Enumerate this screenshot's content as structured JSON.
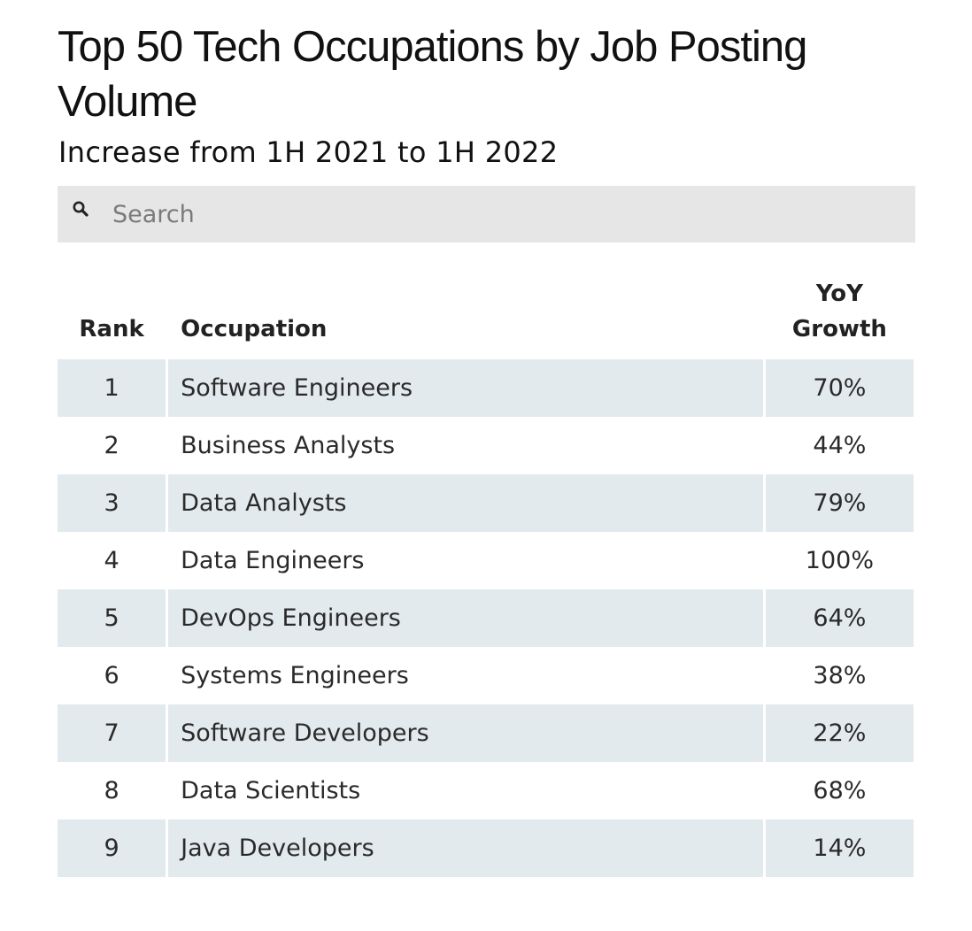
{
  "header": {
    "title": "Top 50 Tech Occupations by Job Posting Volume",
    "subtitle": "Increase from 1H 2021 to 1H 2022"
  },
  "search": {
    "icon": "search-icon",
    "placeholder": "Search",
    "value": ""
  },
  "colors": {
    "stripe": "#e3eaed",
    "search_background": "#e6e6e6"
  },
  "chart_data": {
    "type": "table",
    "title": "Top 50 Tech Occupations by Job Posting Volume",
    "subtitle": "Increase from 1H 2021 to 1H 2022",
    "columns": [
      "Rank",
      "Occupation",
      "YoY Growth"
    ],
    "rows": [
      {
        "rank": "1",
        "occupation": "Software Engineers",
        "growth": "70%"
      },
      {
        "rank": "2",
        "occupation": "Business Analysts",
        "growth": "44%"
      },
      {
        "rank": "3",
        "occupation": "Data Analysts",
        "growth": "79%"
      },
      {
        "rank": "4",
        "occupation": "Data Engineers",
        "growth": "100%"
      },
      {
        "rank": "5",
        "occupation": "DevOps Engineers",
        "growth": "64%"
      },
      {
        "rank": "6",
        "occupation": "Systems Engineers",
        "growth": "38%"
      },
      {
        "rank": "7",
        "occupation": "Software Developers",
        "growth": "22%"
      },
      {
        "rank": "8",
        "occupation": "Data Scientists",
        "growth": "68%"
      },
      {
        "rank": "9",
        "occupation": "Java Developers",
        "growth": "14%"
      }
    ]
  }
}
